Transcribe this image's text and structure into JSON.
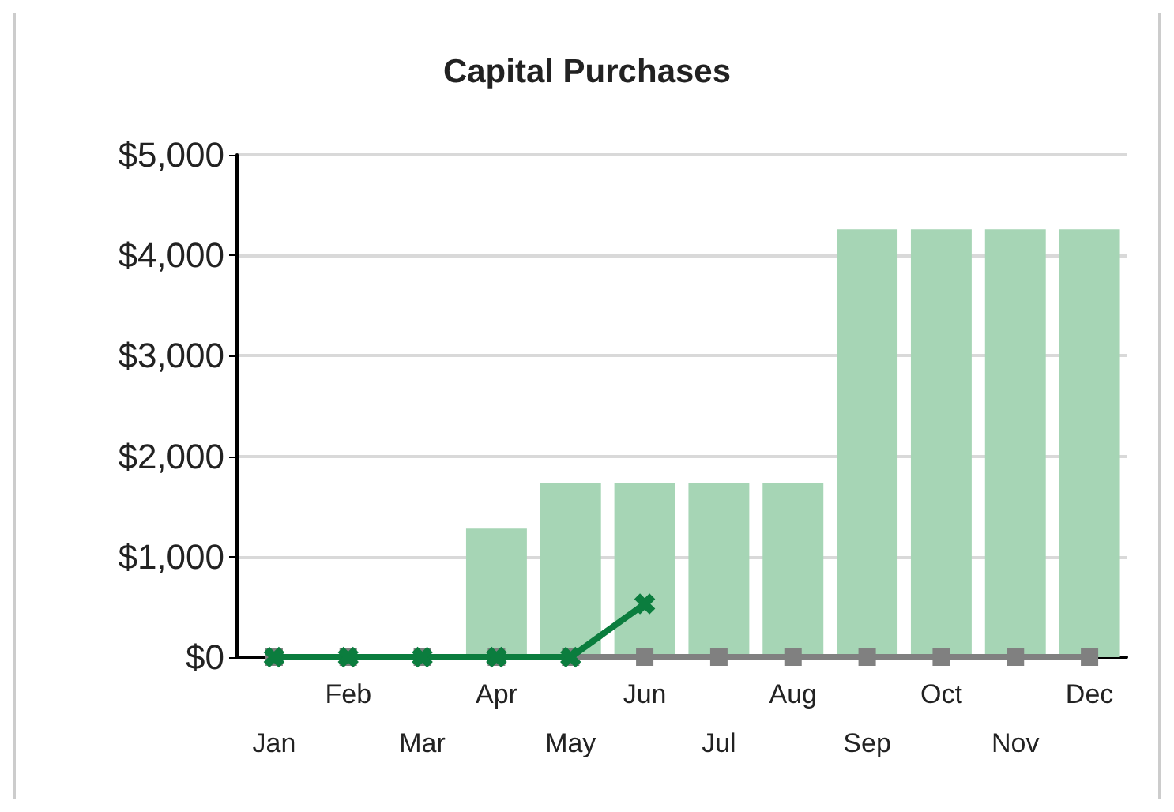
{
  "chart_data": {
    "type": "bar",
    "title": "Capital Purchases",
    "categories": [
      "Jan",
      "Feb",
      "Mar",
      "Apr",
      "May",
      "Jun",
      "Jul",
      "Aug",
      "Sep",
      "Oct",
      "Nov",
      "Dec"
    ],
    "series": [
      {
        "color": "#a6d5b5",
        "values": [
          0,
          0,
          0,
          1280,
          1730,
          1730,
          1730,
          1730,
          4260,
          4260,
          4260,
          4260
        ]
      },
      {
        "type": "line",
        "color": "#808080",
        "marker": "square",
        "values": [
          0,
          0,
          0,
          0,
          0,
          0,
          0,
          0,
          0,
          0,
          0,
          0
        ]
      },
      {
        "type": "line",
        "color": "#0b7d3e",
        "marker": "cross",
        "values": [
          0,
          0,
          0,
          0,
          0,
          530,
          null,
          null,
          null,
          null,
          null,
          null
        ]
      }
    ],
    "ylim": [
      0,
      5000
    ],
    "yticks": [
      {
        "value": 0,
        "label": "$0"
      },
      {
        "value": 1000,
        "label": "$1,000"
      },
      {
        "value": 2000,
        "label": "$2,000"
      },
      {
        "value": 3000,
        "label": "$3,000"
      },
      {
        "value": 4000,
        "label": "$4,000"
      },
      {
        "value": 5000,
        "label": "$5,000"
      }
    ],
    "grid": "y"
  }
}
